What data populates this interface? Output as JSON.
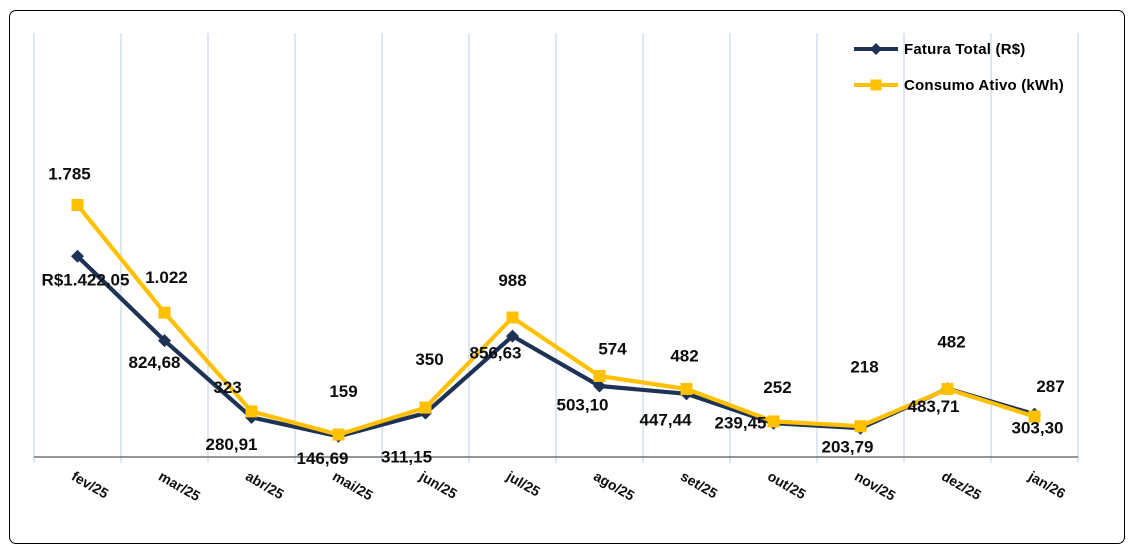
{
  "chart_data": {
    "type": "line",
    "title": "",
    "xlabel": "",
    "ylabel": "",
    "legend_position": "top-right",
    "grid": "vertical-only",
    "y_axis_visible": false,
    "ylim": [
      0,
      2980
    ],
    "categories": [
      "fev/25",
      "mar/25",
      "abr/25",
      "mai/25",
      "jun/25",
      "jul/25",
      "ago/25",
      "set/25",
      "out/25",
      "nov/25",
      "dez/25",
      "jan/26"
    ],
    "series": [
      {
        "name": "Fatura Total (R$)",
        "color": "#1e3256",
        "marker": "diamond",
        "values": [
          1422.05,
          824.68,
          280.91,
          146.69,
          311.15,
          856.63,
          503.1,
          447.44,
          239.45,
          203.79,
          483.71,
          303.3
        ],
        "labels": [
          "R$1.422,05",
          "824,68",
          "280,91",
          "146,69",
          "311,15",
          "856,63",
          "503,10",
          "447,44",
          "239,45",
          "203,79",
          "483,71",
          "303,30"
        ],
        "label_offsets": [
          [
            8,
            25
          ],
          [
            -10,
            23
          ],
          [
            -20,
            28
          ],
          [
            -16,
            23
          ],
          [
            -19,
            45
          ],
          [
            -17,
            18
          ],
          [
            -17,
            20
          ],
          [
            -21,
            27
          ],
          [
            -33,
            1
          ],
          [
            -13,
            20
          ],
          [
            -14,
            19
          ],
          [
            3,
            15
          ]
        ]
      },
      {
        "name": "Consumo Ativo (kWh)",
        "color": "#ffc000",
        "marker": "square",
        "values": [
          1785,
          1022,
          323,
          159,
          350,
          988,
          574,
          482,
          252,
          218,
          482,
          287
        ],
        "labels": [
          "1.785",
          "1.022",
          "323",
          "159",
          "350",
          "988",
          "574",
          "482",
          "252",
          "218",
          "482",
          "287"
        ],
        "label_offsets": [
          [
            -8,
            -30
          ],
          [
            2,
            -34
          ],
          [
            -24,
            -23
          ],
          [
            5,
            -42
          ],
          [
            4,
            -47
          ],
          [
            0,
            -36
          ],
          [
            13,
            -26
          ],
          [
            -2,
            -32
          ],
          [
            4,
            -33
          ],
          [
            4,
            -58
          ],
          [
            4,
            -46
          ],
          [
            16,
            -29
          ]
        ]
      }
    ],
    "colors": {
      "gridline": "#c2d6ea",
      "axis_line": "#595959",
      "tick": "#c2d6ea",
      "data_label": "#0d0d0d",
      "chart_border": "#000000"
    }
  }
}
